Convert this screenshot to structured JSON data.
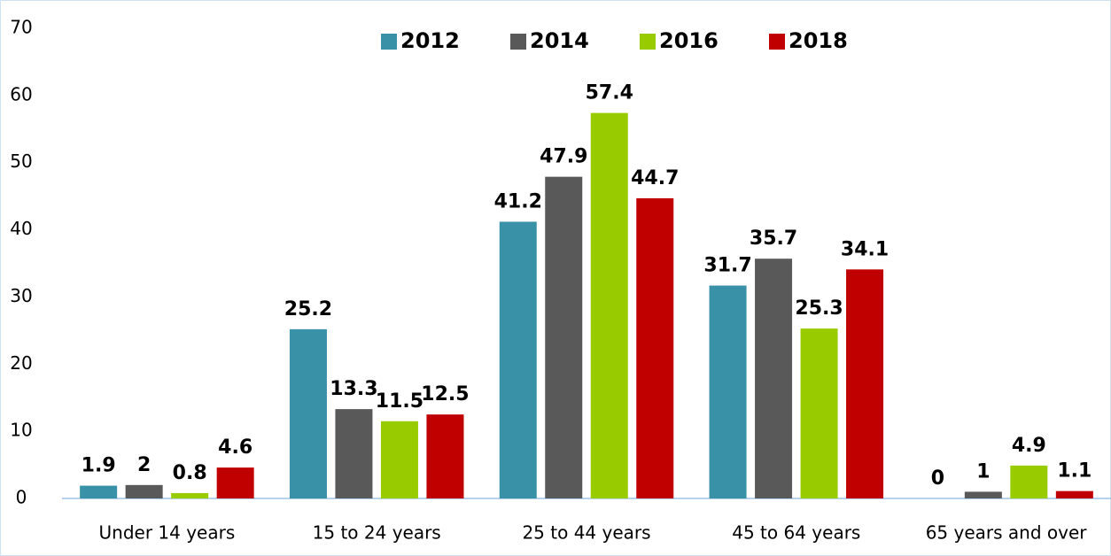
{
  "chart_data": {
    "type": "bar",
    "categories": [
      "Under 14 years",
      "15 to 24 years",
      "25 to 44 years",
      "45 to 64 years",
      "65 years and over"
    ],
    "series": [
      {
        "name": "2012",
        "color": "#3891a7",
        "values": [
          1.9,
          25.2,
          41.2,
          31.7,
          0
        ]
      },
      {
        "name": "2014",
        "color": "#595959",
        "values": [
          2,
          13.3,
          47.9,
          35.7,
          1
        ]
      },
      {
        "name": "2016",
        "color": "#99cc00",
        "values": [
          0.8,
          11.5,
          57.4,
          25.3,
          4.9
        ]
      },
      {
        "name": "2018",
        "color": "#c00000",
        "values": [
          4.6,
          12.5,
          44.7,
          34.1,
          1.1
        ]
      }
    ],
    "ylim": [
      0,
      70
    ],
    "yticks": [
      0,
      10,
      20,
      30,
      40,
      50,
      60,
      70
    ],
    "legend": "top",
    "grid": false
  }
}
